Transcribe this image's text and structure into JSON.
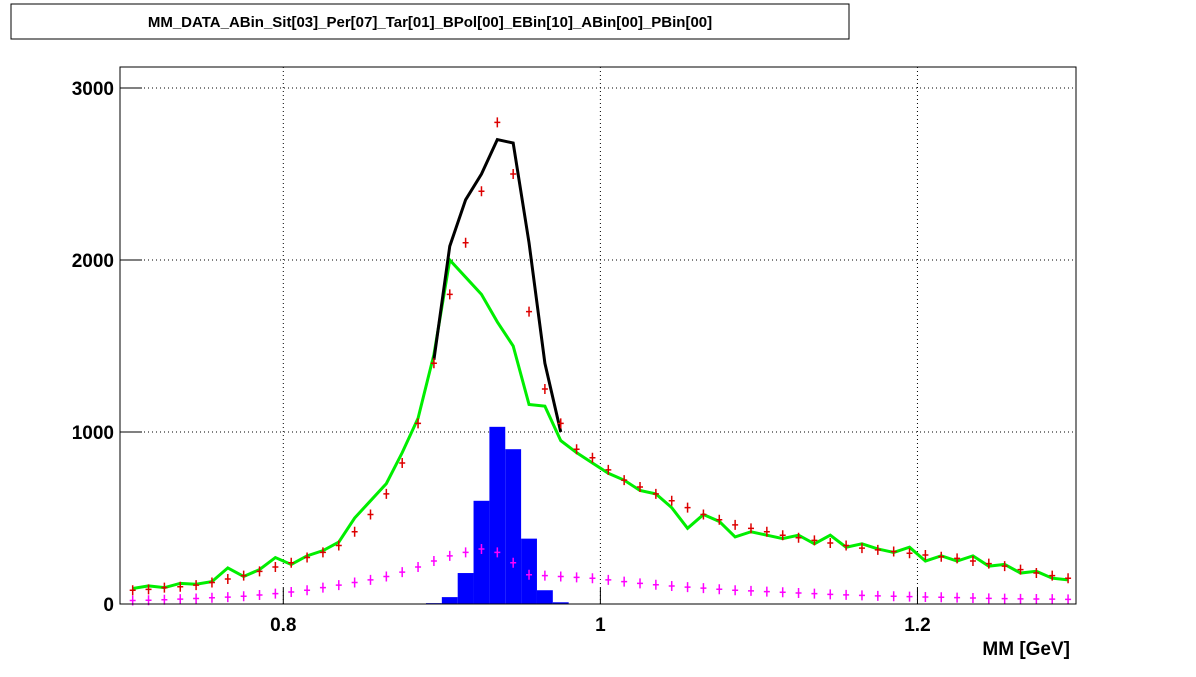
{
  "chart_data": {
    "type": "histogram-overlay",
    "title": "MM_DATA_ABin_Sit[03]_Per[07]_Tar[01]_BPol[00]_EBin[10]_ABin[00]_PBin[00]",
    "x_label": "MM [GeV]",
    "xlim": [
      0.697,
      1.3
    ],
    "ylim": [
      0,
      3122
    ],
    "xticks": [
      0.8,
      1,
      1.2
    ],
    "yticks": [
      0,
      1000,
      2000,
      3000
    ],
    "grid": true,
    "x": [
      0.705,
      0.715,
      0.725,
      0.735,
      0.745,
      0.755,
      0.765,
      0.775,
      0.785,
      0.795,
      0.805,
      0.815,
      0.825,
      0.835,
      0.845,
      0.855,
      0.865,
      0.875,
      0.885,
      0.895,
      0.905,
      0.915,
      0.925,
      0.935,
      0.945,
      0.955,
      0.965,
      0.975,
      0.985,
      0.995,
      1.005,
      1.015,
      1.025,
      1.035,
      1.045,
      1.055,
      1.065,
      1.075,
      1.085,
      1.095,
      1.105,
      1.115,
      1.125,
      1.135,
      1.145,
      1.155,
      1.165,
      1.175,
      1.185,
      1.195,
      1.205,
      1.215,
      1.225,
      1.235,
      1.245,
      1.255,
      1.265,
      1.275,
      1.285,
      1.295
    ],
    "series": [
      {
        "style": "fill",
        "color": "#0000ff",
        "values": [
          0,
          0,
          0,
          0,
          0,
          0,
          0,
          0,
          0,
          0,
          0,
          0,
          0,
          0,
          0,
          0,
          0,
          0,
          0,
          5,
          40,
          180,
          600,
          1030,
          900,
          380,
          80,
          10,
          0,
          0,
          0,
          0,
          0,
          0,
          0,
          0,
          0,
          0,
          0,
          0,
          0,
          0,
          0,
          0,
          0,
          0,
          0,
          0,
          0,
          0,
          0,
          0,
          0,
          0,
          0,
          0,
          0,
          0,
          0,
          0
        ]
      },
      {
        "style": "points",
        "color": "#ff00ff",
        "values": [
          20,
          22,
          25,
          28,
          32,
          36,
          40,
          45,
          52,
          60,
          70,
          80,
          95,
          110,
          125,
          140,
          160,
          185,
          215,
          250,
          280,
          300,
          320,
          300,
          240,
          170,
          165,
          160,
          155,
          150,
          140,
          130,
          120,
          112,
          105,
          98,
          92,
          86,
          80,
          76,
          72,
          68,
          64,
          60,
          56,
          53,
          50,
          47,
          45,
          43,
          41,
          39,
          37,
          35,
          33,
          31,
          30,
          29,
          28,
          27
        ]
      },
      {
        "style": "line",
        "color": "#00ee00",
        "values": [
          90,
          105,
          95,
          120,
          115,
          130,
          210,
          160,
          200,
          270,
          230,
          280,
          310,
          360,
          500,
          600,
          700,
          880,
          1080,
          1450,
          2000,
          1900,
          1800,
          1640,
          1500,
          1160,
          1150,
          950,
          880,
          820,
          760,
          720,
          660,
          640,
          560,
          440,
          520,
          480,
          390,
          420,
          400,
          380,
          400,
          350,
          400,
          330,
          350,
          320,
          300,
          330,
          250,
          280,
          250,
          280,
          220,
          230,
          180,
          190,
          150,
          140
        ]
      },
      {
        "style": "line",
        "color": "#000000",
        "values": [
          null,
          null,
          null,
          null,
          null,
          null,
          null,
          null,
          null,
          null,
          null,
          null,
          null,
          null,
          null,
          null,
          null,
          null,
          null,
          1420,
          2080,
          2350,
          2500,
          2700,
          2680,
          2100,
          1400,
          1000,
          null,
          null,
          null,
          null,
          null,
          null,
          null,
          null,
          null,
          null,
          null,
          null,
          null,
          null,
          null,
          null,
          null,
          null,
          null,
          null,
          null,
          null,
          null,
          null,
          null,
          null,
          null,
          null,
          null,
          null,
          null,
          null
        ]
      },
      {
        "style": "points",
        "color": "#dd0000",
        "values": [
          80,
          85,
          95,
          100,
          110,
          125,
          145,
          165,
          190,
          215,
          240,
          270,
          300,
          340,
          420,
          520,
          640,
          820,
          1050,
          1400,
          1800,
          2100,
          2400,
          2800,
          2500,
          1700,
          1250,
          1050,
          900,
          850,
          780,
          720,
          680,
          640,
          600,
          560,
          520,
          490,
          460,
          440,
          420,
          400,
          385,
          370,
          355,
          340,
          325,
          315,
          305,
          295,
          285,
          275,
          265,
          250,
          235,
          220,
          200,
          180,
          165,
          150
        ]
      }
    ]
  }
}
